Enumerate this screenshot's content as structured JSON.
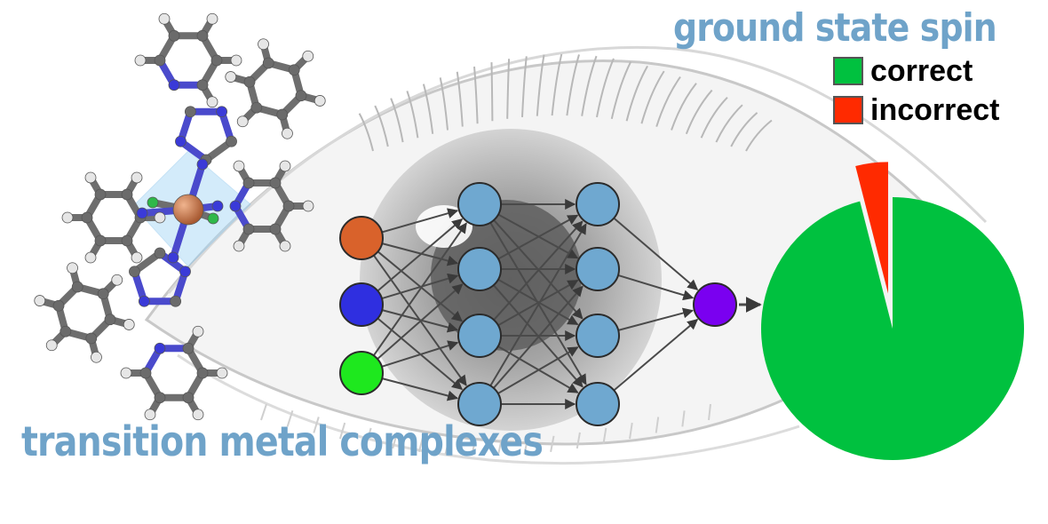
{
  "title": "ground state spin",
  "caption": "transition metal complexes",
  "legend": [
    {
      "label": "correct",
      "color": "#00c13f"
    },
    {
      "label": "incorrect",
      "color": "#ff2a00"
    }
  ],
  "pie": {
    "correct_percent": 96,
    "incorrect_percent": 4
  },
  "network": {
    "layers": [
      3,
      4,
      4,
      1
    ],
    "input_colors": [
      "#d9622b",
      "#2f2fe0",
      "#1ee81e"
    ],
    "hidden_color": "#6fa8d0",
    "output_color": "#7a00f0"
  }
}
